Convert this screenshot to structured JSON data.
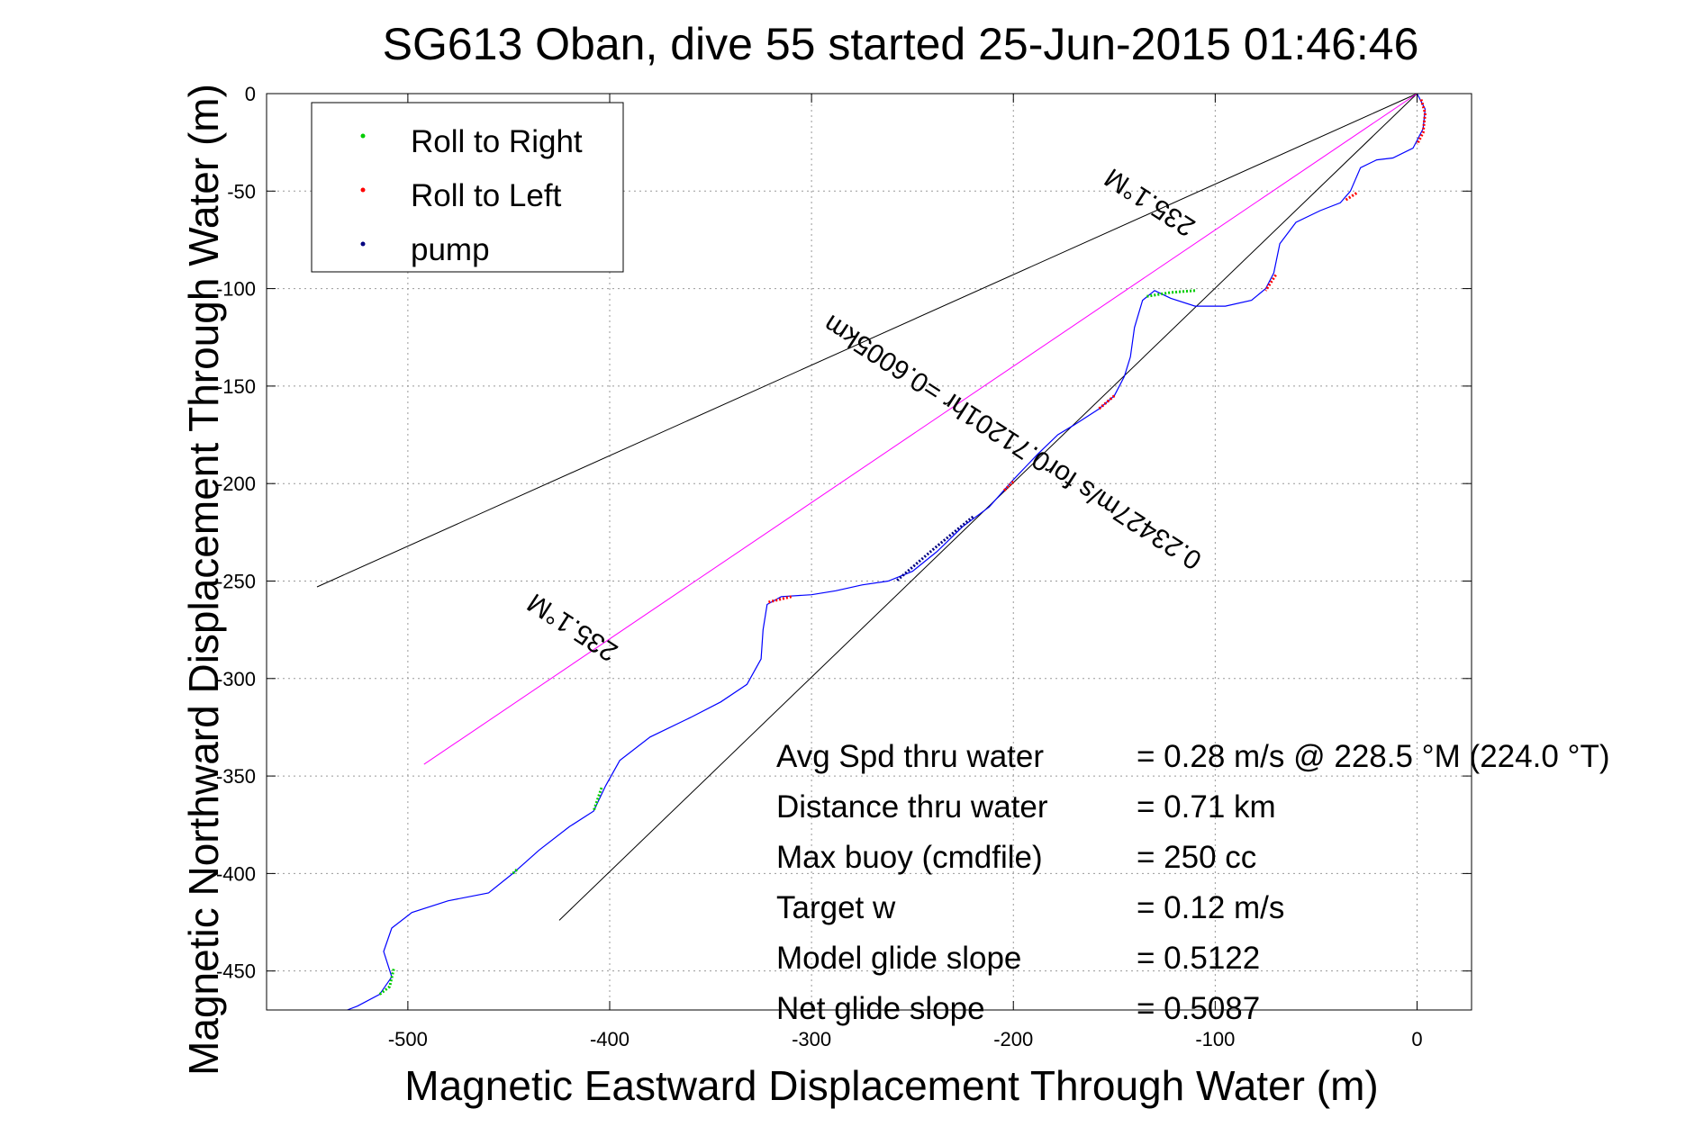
{
  "chart_data": {
    "type": "line",
    "title": "SG613 Oban, dive 55 started 25-Jun-2015 01:46:46",
    "xlabel": "Magnetic Eastward Displacement Through Water (m)",
    "ylabel": "Magnetic Northward Displacement Through Water (m)",
    "xlim": [
      -570,
      27
    ],
    "ylim": [
      -470,
      0
    ],
    "x_ticks": [
      -500,
      -400,
      -300,
      -200,
      -100,
      0
    ],
    "y_ticks": [
      0,
      -50,
      -100,
      -150,
      -200,
      -250,
      -300,
      -350,
      -400,
      -450
    ],
    "grid": true,
    "legend_position": "top-left",
    "legend": [
      {
        "label": "Roll to Right",
        "color": "#00cc00"
      },
      {
        "label": "Roll to Left",
        "color": "#ff0000"
      },
      {
        "label": "pump",
        "color": "#000080"
      }
    ],
    "track_color": "#0000ff",
    "track": [
      [
        0,
        0
      ],
      [
        4,
        -8
      ],
      [
        3,
        -18
      ],
      [
        -2,
        -28
      ],
      [
        -12,
        -33
      ],
      [
        -20,
        -34
      ],
      [
        -28,
        -38
      ],
      [
        -33,
        -50
      ],
      [
        -38,
        -56
      ],
      [
        -48,
        -60
      ],
      [
        -60,
        -66
      ],
      [
        -68,
        -77
      ],
      [
        -71,
        -92
      ],
      [
        -75,
        -100
      ],
      [
        -82,
        -106
      ],
      [
        -95,
        -109
      ],
      [
        -110,
        -109
      ],
      [
        -122,
        -105
      ],
      [
        -130,
        -101
      ],
      [
        -136,
        -106
      ],
      [
        -140,
        -120
      ],
      [
        -142,
        -135
      ],
      [
        -145,
        -145
      ],
      [
        -150,
        -155
      ],
      [
        -158,
        -162
      ],
      [
        -170,
        -170
      ],
      [
        -178,
        -175
      ],
      [
        -188,
        -185
      ],
      [
        -200,
        -198
      ],
      [
        -212,
        -212
      ],
      [
        -225,
        -222
      ],
      [
        -238,
        -235
      ],
      [
        -250,
        -245
      ],
      [
        -262,
        -250
      ],
      [
        -275,
        -252
      ],
      [
        -288,
        -255
      ],
      [
        -300,
        -257
      ],
      [
        -315,
        -258
      ],
      [
        -322,
        -262
      ],
      [
        -324,
        -275
      ],
      [
        -325,
        -290
      ],
      [
        -332,
        -303
      ],
      [
        -345,
        -312
      ],
      [
        -360,
        -320
      ],
      [
        -380,
        -330
      ],
      [
        -395,
        -342
      ],
      [
        -402,
        -355
      ],
      [
        -408,
        -368
      ],
      [
        -420,
        -376
      ],
      [
        -435,
        -388
      ],
      [
        -448,
        -400
      ],
      [
        -460,
        -410
      ],
      [
        -480,
        -414
      ],
      [
        -498,
        -420
      ],
      [
        -508,
        -428
      ],
      [
        -512,
        -440
      ],
      [
        -508,
        -453
      ],
      [
        -514,
        -462
      ],
      [
        -525,
        -468
      ],
      [
        -530,
        -470
      ]
    ],
    "roll_right_segments": [
      [
        [
          -110,
          -101
        ],
        [
          -122,
          -102
        ],
        [
          -134,
          -104
        ]
      ],
      [
        [
          -404,
          -356
        ],
        [
          -408,
          -368
        ]
      ],
      [
        [
          -446,
          -398
        ],
        [
          -448,
          -400
        ]
      ],
      [
        [
          -507,
          -449
        ],
        [
          -509,
          -458
        ],
        [
          -514,
          -462
        ]
      ]
    ],
    "roll_left_segments": [
      [
        [
          2,
          -3
        ],
        [
          4,
          -10
        ],
        [
          3,
          -20
        ],
        [
          0,
          -26
        ]
      ],
      [
        [
          -30,
          -51
        ],
        [
          -36,
          -55
        ]
      ],
      [
        [
          -70,
          -93
        ],
        [
          -75,
          -101
        ]
      ],
      [
        [
          -150,
          -155
        ],
        [
          -158,
          -162
        ]
      ],
      [
        [
          -200,
          -199
        ],
        [
          -205,
          -204
        ]
      ],
      [
        [
          -310,
          -258
        ],
        [
          -322,
          -261
        ]
      ]
    ],
    "pump_segments": [
      [
        [
          -220,
          -217
        ],
        [
          -240,
          -234
        ],
        [
          -258,
          -250
        ]
      ]
    ],
    "reference_lines": [
      {
        "from": [
          0,
          0
        ],
        "to": [
          -545,
          -253
        ],
        "color": "#000000"
      },
      {
        "from": [
          0,
          0
        ],
        "to": [
          -425,
          -424
        ],
        "color": "#000000"
      },
      {
        "from": [
          0,
          0
        ],
        "to": [
          -492,
          -344
        ],
        "color": "#ff00ff"
      }
    ],
    "annotations": [
      {
        "text": "235.1°M",
        "at": [
          -130,
          -52
        ],
        "angle": 213
      },
      {
        "text": "0.23427m/s for0.71201hr =0.6005km",
        "at": [
          -198,
          -175
        ],
        "angle": 213
      },
      {
        "text": "235.1°M",
        "at": [
          -416,
          -270
        ],
        "angle": 213
      }
    ],
    "stats": [
      {
        "label": "Avg Spd thru water",
        "value": "=  0.28 m/s @ 228.5 °M (224.0 °T)"
      },
      {
        "label": "Distance thru water",
        "value": "=  0.71 km"
      },
      {
        "label": "Max buoy (cmdfile)",
        "value": "= 250 cc"
      },
      {
        "label": "Target w",
        "value": "= 0.12 m/s"
      },
      {
        "label": "Model glide slope",
        "value": "= 0.5122"
      },
      {
        "label": "Net glide slope",
        "value": "= 0.5087"
      }
    ]
  }
}
